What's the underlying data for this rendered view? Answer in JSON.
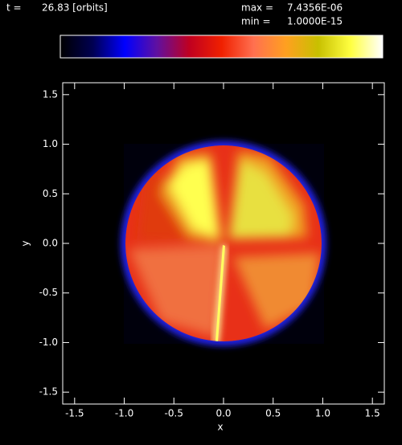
{
  "header": {
    "time_label": "t =",
    "time_value": "26.83 [orbits]",
    "max_label": "max =",
    "max_value": "7.4356E-06",
    "min_label": "min =",
    "min_value": "1.0000E-15"
  },
  "colorbar": {
    "colors": [
      "#000000",
      "#000050",
      "#0000ff",
      "#6010a0",
      "#c00020",
      "#f02000",
      "#ff7050",
      "#ffa020",
      "#c8c000",
      "#ffff40",
      "#ffffff"
    ]
  },
  "chart_data": {
    "type": "image",
    "xlabel": "x",
    "ylabel": "y",
    "xlim": [
      -1.62,
      1.62
    ],
    "ylim": [
      -1.62,
      1.62
    ],
    "xticks": [
      -1.5,
      {
        "value": -1,
        "label": "-1.0"
      },
      -0.5,
      {
        "value": 0,
        "label": "0.0"
      },
      0.5,
      {
        "value": 1,
        "label": "1.0"
      },
      1.5
    ],
    "yticks": [
      -1.5,
      {
        "value": -1,
        "label": "-1.0"
      },
      -0.5,
      {
        "value": 0,
        "label": "0.0"
      },
      0.5,
      {
        "value": 1,
        "label": "1.0"
      },
      1.5
    ]
  }
}
